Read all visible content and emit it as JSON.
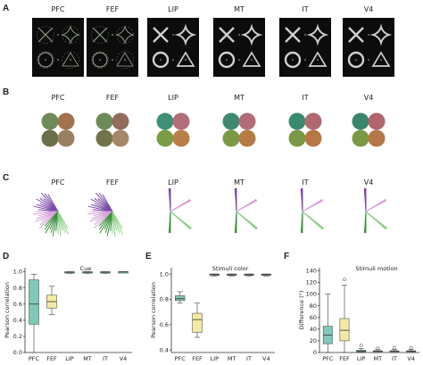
{
  "panels": {
    "A": "A",
    "B": "B",
    "C": "C",
    "D": "D",
    "E": "E",
    "F": "F"
  },
  "regions": [
    "PFC",
    "FEF",
    "LIP",
    "MT",
    "IT",
    "V4"
  ],
  "colors": {
    "box_teal": "#7fc9b8",
    "box_yellow": "#f3eaa2",
    "circle_A": [
      "#6f7b58",
      "#8b6f5a",
      "#6e6b4c",
      "#9a7b63"
    ],
    "purple": "#7a4aa6",
    "pink": "#d7a3d8",
    "green": "#3c8f3c",
    "lightgreen": "#8fd08a"
  },
  "row_B": [
    {
      "region": "PFC",
      "circles": [
        "#6f8a58",
        "#a1724f",
        "#6b6f4a",
        "#9b7f62"
      ]
    },
    {
      "region": "FEF",
      "circles": [
        "#6c8b5a",
        "#8f6c5c",
        "#707448",
        "#a4886a"
      ]
    },
    {
      "region": "LIP",
      "circles": [
        "#3f8f76",
        "#b36c7a",
        "#7b9c46",
        "#b88048"
      ]
    },
    {
      "region": "MT",
      "circles": [
        "#3d8a70",
        "#b36c76",
        "#7b9a44",
        "#b57b45"
      ]
    },
    {
      "region": "IT",
      "circles": [
        "#3a8a6e",
        "#b06871",
        "#7a9944",
        "#b87845"
      ]
    },
    {
      "region": "V4",
      "circles": [
        "#3a866c",
        "#b0656f",
        "#7a9744",
        "#b57846"
      ]
    }
  ],
  "chart_data": [
    {
      "type": "box",
      "panel": "D",
      "title": "Cue",
      "ylabel": "Pearson correlation",
      "ylim": [
        0,
        1.05
      ],
      "yticks": [
        "0.0",
        "0.2",
        "0.4",
        "0.6",
        "0.8",
        "1.0"
      ],
      "categories": [
        "PFC",
        "FEF",
        "LIP",
        "MT",
        "IT",
        "V4"
      ],
      "boxes": [
        {
          "min": 0.0,
          "q1": 0.35,
          "median": 0.6,
          "q3": 0.9,
          "max": 0.97,
          "color": "#7fc9b8"
        },
        {
          "min": 0.47,
          "q1": 0.55,
          "median": 0.63,
          "q3": 0.71,
          "max": 0.82,
          "color": "#f3eaa2"
        },
        {
          "min": 0.98,
          "q1": 0.99,
          "median": 0.995,
          "q3": 1.0,
          "max": 1.0,
          "color": "#7fc9b8"
        },
        {
          "min": 0.98,
          "q1": 0.99,
          "median": 0.995,
          "q3": 1.0,
          "max": 1.0,
          "color": "#7fc9b8"
        },
        {
          "min": 0.98,
          "q1": 0.99,
          "median": 0.995,
          "q3": 1.0,
          "max": 1.0,
          "color": "#7fc9b8"
        },
        {
          "min": 0.99,
          "q1": 0.995,
          "median": 0.998,
          "q3": 1.0,
          "max": 1.0,
          "color": "#7fc9b8"
        }
      ]
    },
    {
      "type": "box",
      "panel": "E",
      "title": "Stimuli color",
      "ylabel": "Pearson correlation",
      "ylim": [
        0.38,
        1.05
      ],
      "yticks": [
        "0.4",
        "0.6",
        "0.8",
        "1.0"
      ],
      "categories": [
        "PFC",
        "FEF",
        "LIP",
        "MT",
        "IT",
        "V4"
      ],
      "boxes": [
        {
          "min": 0.77,
          "q1": 0.79,
          "median": 0.805,
          "q3": 0.83,
          "max": 0.86,
          "color": "#7fc9b8"
        },
        {
          "min": 0.5,
          "q1": 0.54,
          "median": 0.64,
          "q3": 0.69,
          "max": 0.77,
          "color": "#f3eaa2"
        },
        {
          "min": 0.985,
          "q1": 0.99,
          "median": 0.995,
          "q3": 1.0,
          "max": 1.0,
          "color": "#7fc9b8"
        },
        {
          "min": 0.985,
          "q1": 0.99,
          "median": 0.995,
          "q3": 1.0,
          "max": 1.0,
          "color": "#7fc9b8"
        },
        {
          "min": 0.985,
          "q1": 0.99,
          "median": 0.995,
          "q3": 1.0,
          "max": 1.0,
          "color": "#7fc9b8"
        },
        {
          "min": 0.985,
          "q1": 0.99,
          "median": 0.995,
          "q3": 1.0,
          "max": 1.0,
          "color": "#7fc9b8"
        }
      ]
    },
    {
      "type": "box",
      "panel": "F",
      "title": "Stimuli motion",
      "ylabel": "Difference (°)",
      "ylim": [
        0,
        145
      ],
      "yticks": [
        "0",
        "20",
        "40",
        "60",
        "80",
        "100",
        "120",
        "140"
      ],
      "categories": [
        "PFC",
        "FEF",
        "LIP",
        "MT",
        "IT",
        "V4"
      ],
      "boxes": [
        {
          "min": 0,
          "q1": 15,
          "median": 30,
          "q3": 45,
          "max": 100,
          "color": "#7fc9b8",
          "outliers": []
        },
        {
          "min": 0,
          "q1": 20,
          "median": 38,
          "q3": 58,
          "max": 115,
          "color": "#f3eaa2",
          "outliers": [
            125
          ]
        },
        {
          "min": 0,
          "q1": 1,
          "median": 2,
          "q3": 4,
          "max": 7,
          "color": "#7fc9b8",
          "outliers": [
            12
          ]
        },
        {
          "min": 0,
          "q1": 1,
          "median": 2,
          "q3": 3,
          "max": 5,
          "color": "#7fc9b8",
          "outliers": [
            7
          ]
        },
        {
          "min": 0,
          "q1": 1,
          "median": 2,
          "q3": 3,
          "max": 5,
          "color": "#7fc9b8",
          "outliers": [
            8
          ]
        },
        {
          "min": 0,
          "q1": 1,
          "median": 2,
          "q3": 3,
          "max": 5,
          "color": "#7fc9b8",
          "outliers": [
            8
          ]
        }
      ]
    }
  ]
}
